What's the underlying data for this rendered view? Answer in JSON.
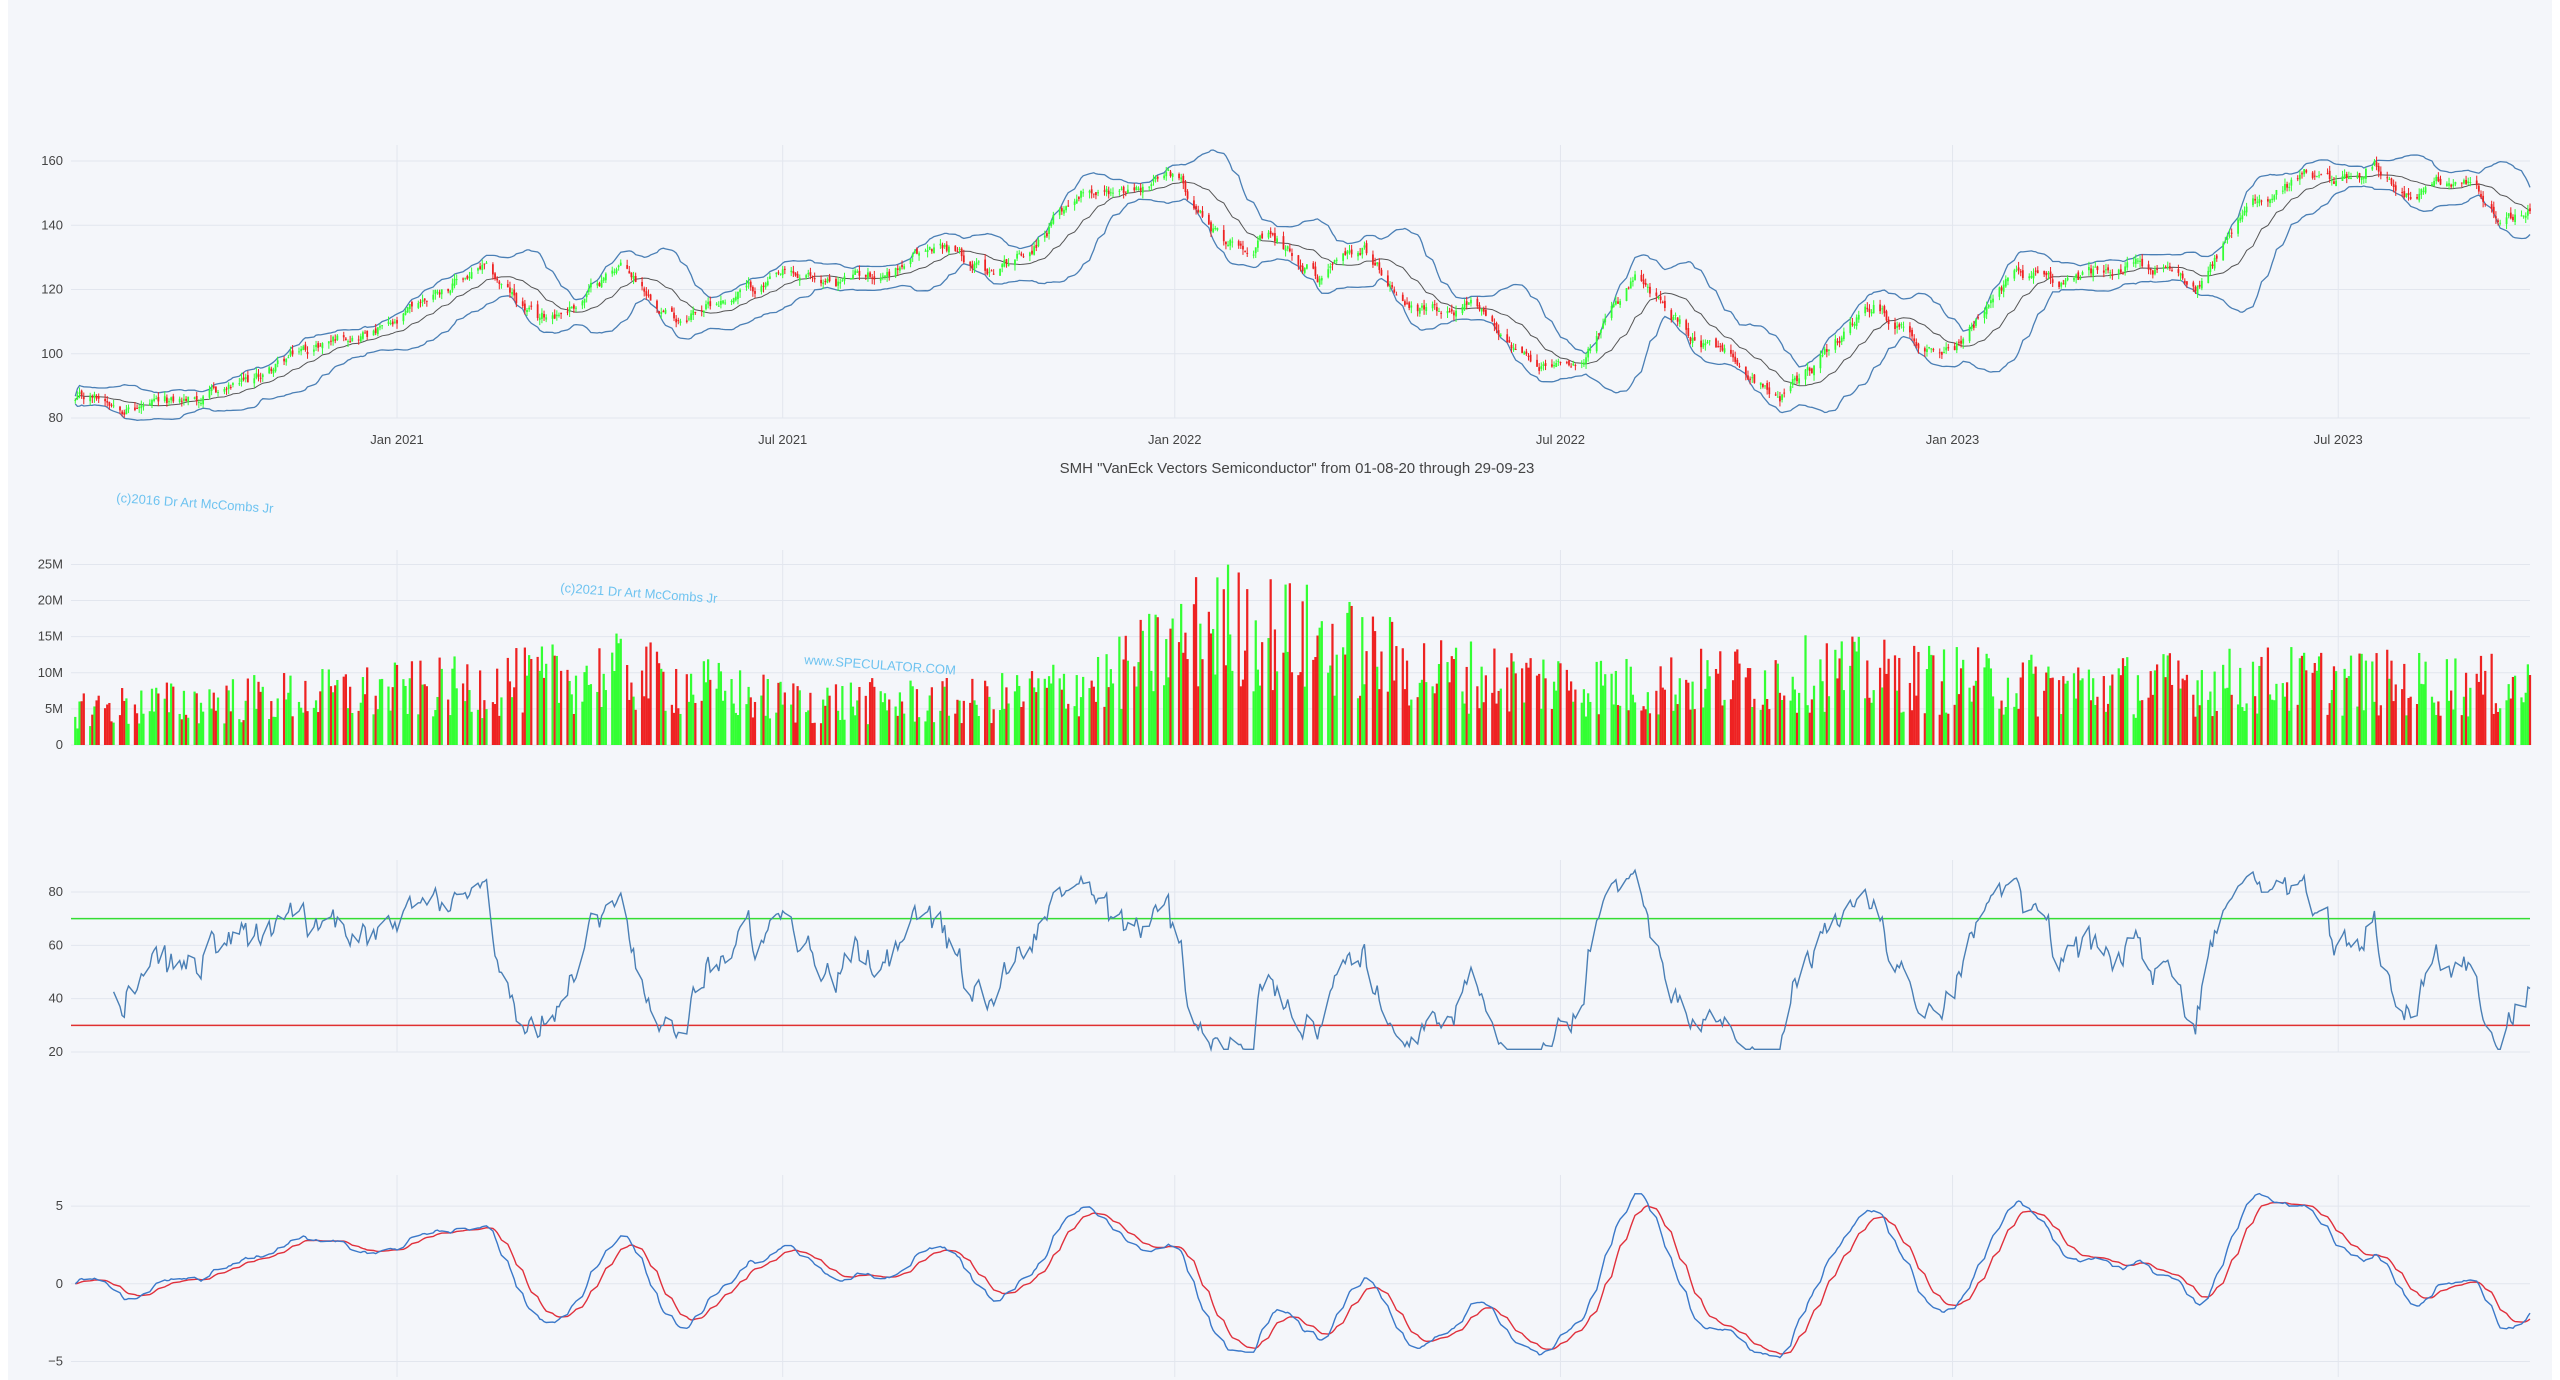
{
  "chart_data": {
    "type": "candlestick",
    "title": "SMH \"VanEck Vectors Semiconductor\" from 01-08-20 through 29-09-23",
    "date_range": {
      "start": "2020-08-01",
      "end": "2023-09-29"
    },
    "x_tick_labels": [
      {
        "date": "2021-01-01",
        "label": "Jan 2021"
      },
      {
        "date": "2021-07-01",
        "label": "Jul 2021"
      },
      {
        "date": "2022-01-01",
        "label": "Jan 2022"
      },
      {
        "date": "2022-07-01",
        "label": "Jul 2022"
      },
      {
        "date": "2023-01-01",
        "label": "Jan 2023"
      },
      {
        "date": "2023-07-01",
        "label": "Jul 2023"
      }
    ],
    "colors": {
      "up": "#33ff33",
      "down": "#ee2222",
      "band": "#4a7fb5",
      "rsi": "#4a7fb5",
      "macd": "#3a78c9",
      "signal": "#e0303c",
      "overbought": "#33dd33",
      "oversold": "#e03030"
    },
    "watermarks": [
      "(c)2016 Dr Art McCombs Jr",
      "(c)2021 Dr Art McCombs Jr",
      "www.SPECULATOR.COM"
    ],
    "price_panel": {
      "ylim": [
        80,
        165
      ],
      "yticks": [
        80,
        100,
        120,
        140,
        160
      ],
      "indicators": [
        "Bollinger upper",
        "Bollinger middle",
        "Bollinger lower"
      ],
      "close_anchors": [
        [
          "2020-08-01",
          85
        ],
        [
          "2020-08-20",
          86
        ],
        [
          "2020-09-10",
          83
        ],
        [
          "2020-10-01",
          86
        ],
        [
          "2020-10-25",
          91
        ],
        [
          "2020-11-15",
          100
        ],
        [
          "2020-12-10",
          107
        ],
        [
          "2021-01-01",
          108
        ],
        [
          "2021-01-20",
          120
        ],
        [
          "2021-02-10",
          126
        ],
        [
          "2021-03-08",
          110
        ],
        [
          "2021-03-28",
          117
        ],
        [
          "2021-04-15",
          128
        ],
        [
          "2021-05-12",
          112
        ],
        [
          "2021-06-05",
          118
        ],
        [
          "2021-07-01",
          123
        ],
        [
          "2021-07-25",
          122
        ],
        [
          "2021-08-20",
          126
        ],
        [
          "2021-09-15",
          134
        ],
        [
          "2021-10-05",
          126
        ],
        [
          "2021-10-25",
          133
        ],
        [
          "2021-11-20",
          153
        ],
        [
          "2021-12-10",
          150
        ],
        [
          "2022-01-01",
          155
        ],
        [
          "2022-01-25",
          135
        ],
        [
          "2022-02-15",
          136
        ],
        [
          "2022-03-10",
          124
        ],
        [
          "2022-03-30",
          134
        ],
        [
          "2022-04-25",
          112
        ],
        [
          "2022-05-25",
          114
        ],
        [
          "2022-06-20",
          94
        ],
        [
          "2022-07-10",
          100
        ],
        [
          "2022-08-05",
          122
        ],
        [
          "2022-08-30",
          106
        ],
        [
          "2022-09-25",
          95
        ],
        [
          "2022-10-12",
          88
        ],
        [
          "2022-10-30",
          98
        ],
        [
          "2022-11-25",
          114
        ],
        [
          "2022-12-15",
          105
        ],
        [
          "2023-01-01",
          102
        ],
        [
          "2023-02-01",
          125
        ],
        [
          "2023-03-01",
          123
        ],
        [
          "2023-03-25",
          128
        ],
        [
          "2023-04-25",
          122
        ],
        [
          "2023-05-25",
          150
        ],
        [
          "2023-06-15",
          156
        ],
        [
          "2023-07-01",
          153
        ],
        [
          "2023-07-18",
          160
        ],
        [
          "2023-08-05",
          148
        ],
        [
          "2023-08-25",
          155
        ],
        [
          "2023-09-15",
          143
        ],
        [
          "2023-09-29",
          144
        ]
      ]
    },
    "volume_panel": {
      "ylim": [
        0,
        27000000
      ],
      "yticks": [
        0,
        5000000,
        10000000,
        15000000,
        20000000,
        25000000
      ],
      "ytick_labels": [
        "0",
        "5M",
        "10M",
        "15M",
        "20M",
        "25M"
      ],
      "volume_anchors": [
        [
          "2020-08-01",
          5000000
        ],
        [
          "2021-02-01",
          8000000
        ],
        [
          "2021-04-15",
          10000000
        ],
        [
          "2021-07-01",
          6000000
        ],
        [
          "2021-10-01",
          6000000
        ],
        [
          "2021-12-01",
          9000000
        ],
        [
          "2022-01-20",
          17000000
        ],
        [
          "2022-03-15",
          14000000
        ],
        [
          "2022-05-01",
          10000000
        ],
        [
          "2022-08-01",
          8000000
        ],
        [
          "2022-11-01",
          10000000
        ],
        [
          "2023-03-01",
          8000000
        ],
        [
          "2023-06-01",
          9000000
        ],
        [
          "2023-09-29",
          8000000
        ]
      ]
    },
    "rsi_panel": {
      "ylim": [
        20,
        92
      ],
      "yticks": [
        20,
        40,
        60,
        80
      ],
      "overbought": 70,
      "oversold": 30
    },
    "macd_panel": {
      "ylim": [
        -6,
        7
      ],
      "yticks": [
        -5,
        0,
        5
      ],
      "ytick_labels": [
        "−5",
        "0",
        "5"
      ],
      "series": [
        {
          "name": ""
        },
        {
          "name": ""
        }
      ]
    }
  }
}
